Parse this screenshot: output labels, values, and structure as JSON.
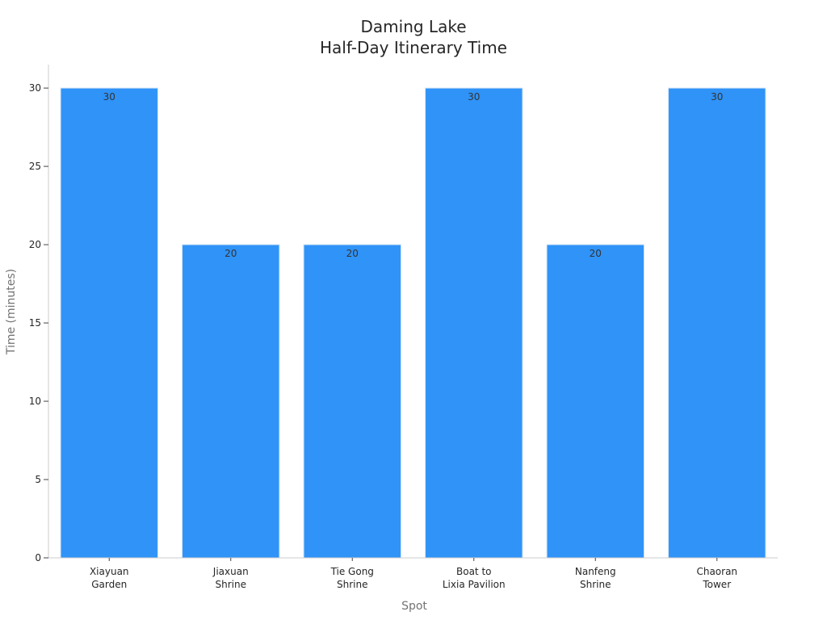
{
  "chart_data": {
    "type": "bar",
    "title": [
      "Daming Lake",
      "Half-Day Itinerary Time"
    ],
    "xlabel": "Spot",
    "ylabel": "Time (minutes)",
    "categories": [
      [
        "Xiayuan",
        "Garden"
      ],
      [
        "Jiaxuan",
        "Shrine"
      ],
      [
        "Tie Gong",
        "Shrine"
      ],
      [
        "Boat to",
        "Lixia Pavilion"
      ],
      [
        "Nanfeng",
        "Shrine"
      ],
      [
        "Chaoran",
        "Tower"
      ]
    ],
    "values": [
      30,
      20,
      20,
      30,
      20,
      30
    ],
    "ylim": [
      0,
      31.5
    ],
    "yticks": [
      0,
      5,
      10,
      15,
      20,
      25,
      30
    ],
    "grid": false,
    "bar_color": "#2f93f8",
    "bar_edge_color": "#cfe3f7"
  }
}
